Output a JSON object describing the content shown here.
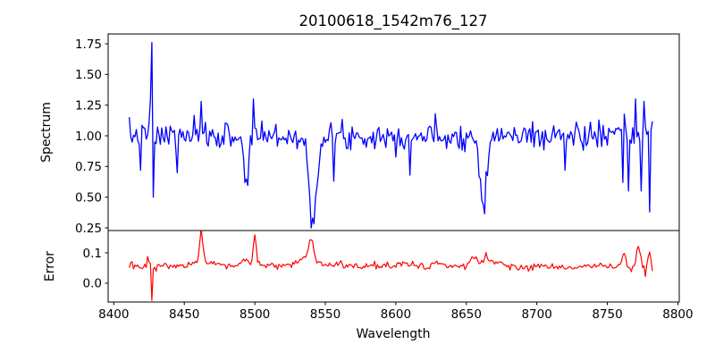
{
  "figure": {
    "background": "#ffffff",
    "text_color": "#000000",
    "spine_color": "#000000"
  },
  "chart_data": {
    "type": "line",
    "title": "20100618_1542m76_127",
    "xlabel": "Wavelength",
    "grid": false,
    "legend_position": "none",
    "xlim": [
      8396,
      8801
    ],
    "xticks": [
      8400,
      8450,
      8500,
      8550,
      8600,
      8650,
      8700,
      8750,
      8800
    ],
    "xtick_labels": [
      "8400",
      "8450",
      "8500",
      "8550",
      "8600",
      "8650",
      "8700",
      "8750",
      "8800"
    ],
    "panels": [
      {
        "name": "spectrum",
        "ylabel": "Spectrum",
        "ylim": [
          0.228,
          1.83
        ],
        "yticks": [
          0.25,
          0.5,
          0.75,
          1.0,
          1.25,
          1.5,
          1.75
        ],
        "ytick_labels": [
          "0.25",
          "0.50",
          "0.75",
          "1.00",
          "1.25",
          "1.50",
          "1.75"
        ],
        "color": "#0000ff",
        "line_width": 1.3,
        "series": {
          "x_start": 8411,
          "x_end": 8782,
          "x_step": 1,
          "seed": 7,
          "baseline": 1.0,
          "noise_sigma": 0.055,
          "gaussians": [
            {
              "center": 8494,
              "amp": -0.42,
              "sigma": 1.6
            },
            {
              "center": 8541,
              "amp": -0.58,
              "sigma": 2.3
            },
            {
              "center": 8541,
              "amp": -0.1,
              "sigma": 6.0
            },
            {
              "center": 8662,
              "amp": -0.48,
              "sigma": 2.0
            },
            {
              "center": 8662,
              "amp": -0.07,
              "sigma": 5.0
            }
          ],
          "points_override": [
            [
              8419,
              0.72
            ],
            [
              8426,
              1.3
            ],
            [
              8427,
              1.76
            ],
            [
              8428,
              0.5
            ],
            [
              8429,
              0.95
            ],
            [
              8445,
              0.7
            ],
            [
              8462,
              1.28
            ],
            [
              8499,
              1.3
            ],
            [
              8505,
              1.12
            ],
            [
              8541,
              0.33
            ],
            [
              8556,
              0.63
            ],
            [
              8610,
              0.68
            ],
            [
              8720,
              0.72
            ],
            [
              8761,
              0.62
            ],
            [
              8765,
              0.55
            ],
            [
              8770,
              1.3
            ],
            [
              8774,
              0.55
            ],
            [
              8776,
              1.28
            ],
            [
              8780,
              0.38
            ]
          ]
        }
      },
      {
        "name": "error",
        "ylabel": "Error",
        "ylim": [
          -0.062,
          0.1735
        ],
        "yticks": [
          0.0,
          0.1
        ],
        "ytick_labels": [
          "0.0",
          "0.1"
        ],
        "color": "#ff0000",
        "line_width": 1.2,
        "series": {
          "x_start": 8411,
          "x_end": 8782,
          "x_step": 1,
          "seed": 13,
          "baseline": 0.054,
          "noise_sigma": 0.006,
          "gaussians": [
            {
              "center": 8462,
              "amp": 0.1,
              "sigma": 1.0
            },
            {
              "center": 8462,
              "amp": 0.018,
              "sigma": 3.5
            },
            {
              "center": 8493,
              "amp": 0.018,
              "sigma": 2.0
            },
            {
              "center": 8500,
              "amp": 0.1,
              "sigma": 1.0
            },
            {
              "center": 8540,
              "amp": 0.072,
              "sigma": 1.6
            },
            {
              "center": 8537,
              "amp": 0.025,
              "sigma": 4.0
            },
            {
              "center": 8608,
              "amp": 0.012,
              "sigma": 4.0
            },
            {
              "center": 8628,
              "amp": 0.008,
              "sigma": 3.0
            },
            {
              "center": 8655,
              "amp": 0.026,
              "sigma": 3.0
            },
            {
              "center": 8664,
              "amp": 0.03,
              "sigma": 2.5
            },
            {
              "center": 8672,
              "amp": 0.014,
              "sigma": 3.0
            },
            {
              "center": 8745,
              "amp": 0.006,
              "sigma": 3.0
            },
            {
              "center": 8762,
              "amp": 0.05,
              "sigma": 1.2
            },
            {
              "center": 8772,
              "amp": 0.07,
              "sigma": 1.3
            },
            {
              "center": 8780,
              "amp": 0.042,
              "sigma": 1.0
            },
            {
              "center": 8520,
              "amp": 0.006,
              "sigma": 60
            }
          ],
          "points_override": [
            [
              8424,
              0.088
            ],
            [
              8427,
              -0.057
            ],
            [
              8428,
              0.046
            ],
            [
              8777,
              0.022
            ],
            [
              8782,
              0.04
            ]
          ]
        }
      }
    ]
  }
}
